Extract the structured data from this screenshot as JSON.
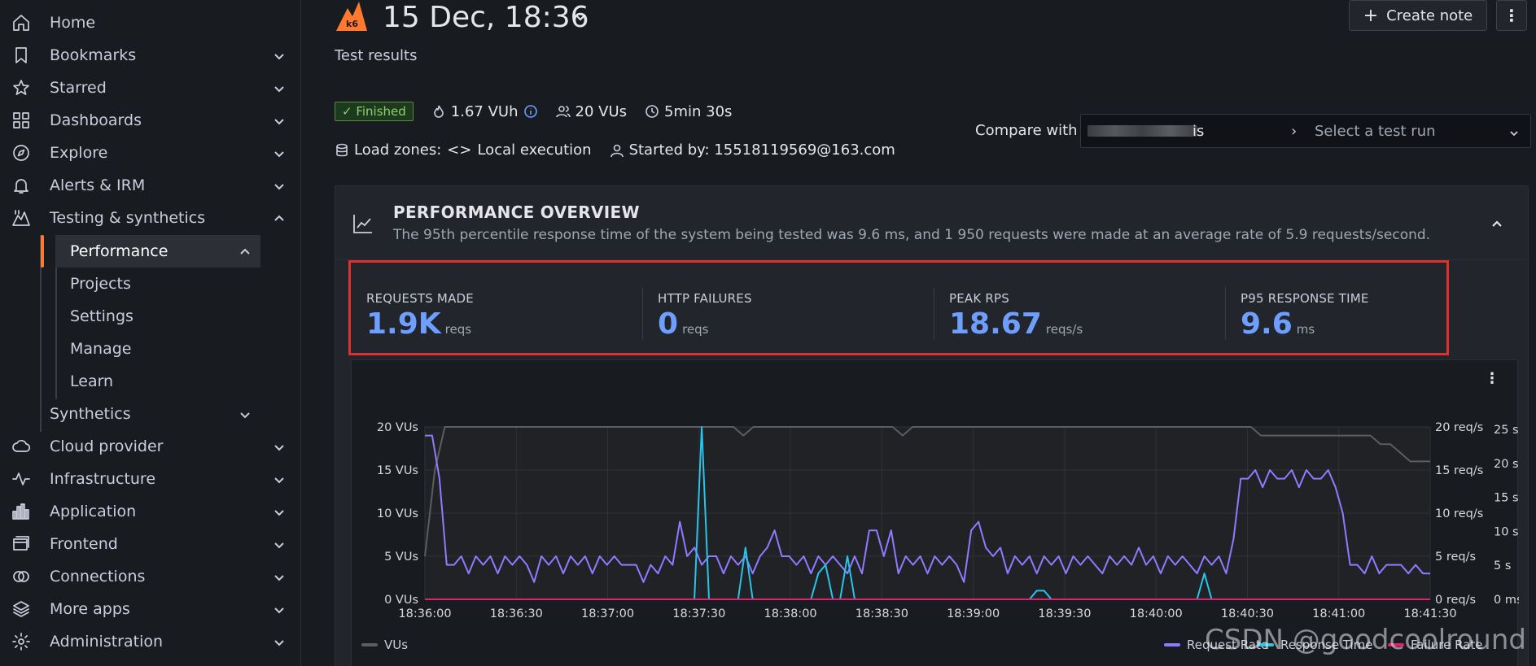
{
  "sidebar": {
    "items": [
      {
        "label": "Home",
        "icon": "home-icon",
        "chevron": false
      },
      {
        "label": "Bookmarks",
        "icon": "bookmark-icon",
        "chevron": true
      },
      {
        "label": "Starred",
        "icon": "star-icon",
        "chevron": true
      },
      {
        "label": "Dashboards",
        "icon": "dashboards-icon",
        "chevron": true
      },
      {
        "label": "Explore",
        "icon": "compass-icon",
        "chevron": true
      },
      {
        "label": "Alerts & IRM",
        "icon": "bell-icon",
        "chevron": true
      },
      {
        "label": "Testing & synthetics",
        "icon": "k6-icon",
        "chevron": true
      },
      {
        "label": "Performance"
      },
      {
        "label": "Projects"
      },
      {
        "label": "Settings"
      },
      {
        "label": "Manage"
      },
      {
        "label": "Learn"
      },
      {
        "label": "Synthetics"
      },
      {
        "label": "Cloud provider",
        "icon": "cloud-icon",
        "chevron": true
      },
      {
        "label": "Infrastructure",
        "icon": "pulse-icon",
        "chevron": true
      },
      {
        "label": "Application",
        "icon": "bar-chart-icon",
        "chevron": true
      },
      {
        "label": "Frontend",
        "icon": "frontend-icon",
        "chevron": true
      },
      {
        "label": "Connections",
        "icon": "connections-icon",
        "chevron": true
      },
      {
        "label": "More apps",
        "icon": "layers-icon",
        "chevron": true
      },
      {
        "label": "Administration",
        "icon": "gear-icon",
        "chevron": true
      }
    ]
  },
  "header": {
    "title": "15 Dec, 18:36",
    "subtitle": "Test results",
    "create_note": "Create note",
    "create_note_icon": "+"
  },
  "meta": {
    "status": "Finished",
    "vuh": "1.67 VUh",
    "vus": "20 VUs",
    "duration": "5min 30s",
    "load_zones_label": "Load zones:",
    "load_zones_value": "Local execution",
    "started_by": "Started by: 15518119569@163.com"
  },
  "compare": {
    "label": "Compare with",
    "value": "is",
    "placeholder": "Select a test run"
  },
  "overview": {
    "title": "PERFORMANCE OVERVIEW",
    "description": "The 95th percentile response time of the system being tested was 9.6 ms, and 1 950 requests were made at an average rate of 5.9 requests/second."
  },
  "stats": [
    {
      "label": "REQUESTS MADE",
      "value": "1.9K",
      "unit": "reqs"
    },
    {
      "label": "HTTP FAILURES",
      "value": "0",
      "unit": "reqs"
    },
    {
      "label": "PEAK RPS",
      "value": "18.67",
      "unit": "reqs/s"
    },
    {
      "label": "P95 RESPONSE TIME",
      "value": "9.6",
      "unit": "ms"
    }
  ],
  "chart_data": {
    "type": "line",
    "x_labels": [
      "18:36:00",
      "18:36:30",
      "18:37:00",
      "18:37:30",
      "18:38:00",
      "18:38:30",
      "18:39:00",
      "18:39:30",
      "18:40:00",
      "18:40:30",
      "18:41:00",
      "18:41:30"
    ],
    "y_left_ticks": [
      "0 VUs",
      "5 VUs",
      "10 VUs",
      "15 VUs",
      "20 VUs"
    ],
    "y_right1_ticks": [
      "0 req/s",
      "5 req/s",
      "10 req/s",
      "15 req/s",
      "20 req/s"
    ],
    "y_right2_ticks": [
      "0 ms",
      "5 s",
      "10 s",
      "15 s",
      "20 s",
      "25 s"
    ],
    "ylim_vus": [
      0,
      20
    ],
    "ylim_reqs": [
      0,
      20
    ],
    "series": [
      {
        "name": "VUs",
        "color": "#5a5d62",
        "values": [
          5,
          15,
          20,
          20,
          20,
          20,
          20,
          20,
          20,
          20,
          20,
          20,
          20,
          20,
          20,
          20,
          20,
          20,
          20,
          20,
          20,
          20,
          20,
          20,
          20,
          20,
          20,
          20,
          20,
          20,
          20,
          20,
          19,
          20,
          20,
          20,
          20,
          20,
          20,
          20,
          20,
          20,
          20,
          20,
          20,
          20,
          20,
          20,
          19,
          20,
          20,
          20,
          20,
          20,
          20,
          20,
          20,
          20,
          20,
          20,
          20,
          20,
          20,
          20,
          20,
          20,
          20,
          20,
          20,
          20,
          20,
          20,
          20,
          20,
          20,
          20,
          20,
          20,
          20,
          20,
          20,
          20,
          20,
          20,
          19,
          19,
          19,
          19,
          19,
          19,
          19,
          19,
          19,
          19,
          19,
          19,
          18,
          18,
          17,
          16,
          16,
          16
        ]
      },
      {
        "name": "Request Rate",
        "color": "#8f7bff",
        "values": [
          19,
          19,
          14,
          4,
          4,
          5,
          3,
          5,
          4,
          5,
          3,
          5,
          4,
          5,
          4,
          2,
          5,
          4,
          5,
          3,
          5,
          4,
          5,
          3,
          5,
          4,
          5,
          4,
          4,
          4,
          2,
          4,
          3,
          5,
          4,
          9,
          5,
          6,
          4,
          5,
          5,
          3,
          5,
          4,
          5,
          3,
          5,
          6,
          8,
          5,
          5,
          4,
          5,
          3,
          5,
          4,
          5,
          4,
          3,
          5,
          3,
          8,
          8,
          5,
          8,
          3,
          5,
          4,
          5,
          3,
          5,
          4,
          5,
          4,
          2,
          8,
          9,
          6,
          5,
          6,
          3,
          5,
          4,
          5,
          3,
          5,
          4,
          5,
          3,
          5,
          4,
          5,
          4,
          3,
          5,
          4,
          5,
          4,
          6,
          4,
          5,
          3,
          5,
          4,
          5,
          4,
          3,
          5,
          4,
          5,
          3,
          7,
          14,
          14,
          15,
          13,
          15,
          14,
          14,
          15,
          13,
          15,
          14,
          14,
          15,
          13,
          10,
          4,
          4,
          3,
          5,
          3,
          4,
          4,
          4,
          3,
          4,
          3,
          3
        ]
      },
      {
        "name": "Response Time",
        "color": "#26c6ea",
        "values": [
          0,
          0,
          0,
          0,
          0,
          0,
          0,
          0,
          0,
          0,
          0,
          0,
          0,
          0,
          0,
          0,
          0,
          0,
          0,
          0,
          0,
          0,
          0,
          0,
          0,
          0,
          0,
          0,
          0,
          0,
          0,
          0,
          0,
          0,
          0,
          0,
          0,
          0,
          20,
          0,
          0,
          0,
          0,
          0,
          6,
          0,
          0,
          0,
          0,
          0,
          0,
          0,
          0,
          0,
          3,
          4,
          0,
          0,
          5,
          0,
          0,
          0,
          0,
          0,
          0,
          0,
          0,
          0,
          0,
          0,
          0,
          0,
          0,
          0,
          0,
          0,
          0,
          0,
          0,
          0,
          0,
          0,
          0,
          0,
          1,
          1,
          0,
          0,
          0,
          0,
          0,
          0,
          0,
          0,
          0,
          0,
          0,
          0,
          0,
          0,
          0,
          0,
          0,
          0,
          0,
          0,
          0,
          3,
          0,
          0,
          0,
          0,
          0,
          0,
          0,
          0,
          0,
          0,
          0,
          0,
          0,
          0,
          0,
          0,
          0,
          0,
          0,
          0,
          0,
          0,
          0,
          0,
          0,
          0,
          0,
          0,
          0,
          0,
          0
        ]
      },
      {
        "name": "Failure Rate",
        "color": "#e0226e",
        "values": [
          0,
          0,
          0,
          0,
          0,
          0,
          0,
          0,
          0,
          0,
          0,
          0,
          0,
          0,
          0,
          0,
          0,
          0,
          0,
          0,
          0,
          0,
          0,
          0,
          0,
          0,
          0,
          0,
          0,
          0,
          0,
          0,
          0,
          0,
          0,
          0,
          0,
          0,
          0,
          0,
          0,
          0,
          0,
          0,
          0,
          0,
          0,
          0,
          0,
          0,
          0,
          0,
          0,
          0,
          0,
          0,
          0,
          0,
          0,
          0,
          0,
          0,
          0,
          0,
          0,
          0,
          0,
          0,
          0,
          0,
          0,
          0,
          0,
          0,
          0,
          0,
          0,
          0,
          0,
          0,
          0,
          0,
          0,
          0,
          0,
          0,
          0,
          0,
          0,
          0,
          0,
          0,
          0,
          0,
          0,
          0,
          0,
          0,
          0,
          0,
          0,
          0,
          0,
          0,
          0,
          0,
          0,
          0,
          0,
          0,
          0,
          0,
          0,
          0,
          0,
          0,
          0,
          0,
          0,
          0,
          0,
          0,
          0,
          0,
          0,
          0,
          0,
          0,
          0,
          0,
          0,
          0,
          0,
          0,
          0,
          0,
          0
        ]
      }
    ]
  },
  "watermark": "CSDN @goodcoolround",
  "colors": {
    "accent": "#ff7a2e",
    "stat_value": "#6e9fff",
    "highlight_border": "#e02f2f"
  }
}
